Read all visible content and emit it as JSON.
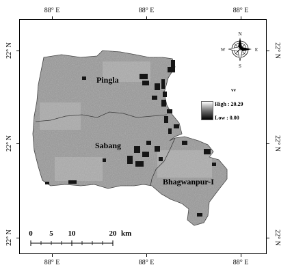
{
  "grid": {
    "top_labels": [
      "88° E",
      "88° E",
      "88° E"
    ],
    "bottom_labels": [
      "88° E",
      "88° E",
      "88° E"
    ],
    "left_labels": [
      "22° N",
      "22° N",
      "22° N"
    ],
    "right_labels": [
      "22° N",
      "22° N",
      "22° N"
    ]
  },
  "regions": [
    "Pingla",
    "Sabang",
    "Bhagwanpur-I"
  ],
  "legend": {
    "title": "vv",
    "high_label": "High : 20.29",
    "low_label": "Low : 0.00",
    "high_color": "#ffffff",
    "low_color": "#000000"
  },
  "compass": {
    "n": "N",
    "s": "S",
    "e": "E",
    "w": "W"
  },
  "scale_bar": {
    "ticks": [
      "0",
      "5",
      "10",
      "20"
    ],
    "unit": "km"
  },
  "colors": {
    "land": "#9a9a9a",
    "water_dark": "#151515",
    "boundary": "#3a3a3a"
  }
}
